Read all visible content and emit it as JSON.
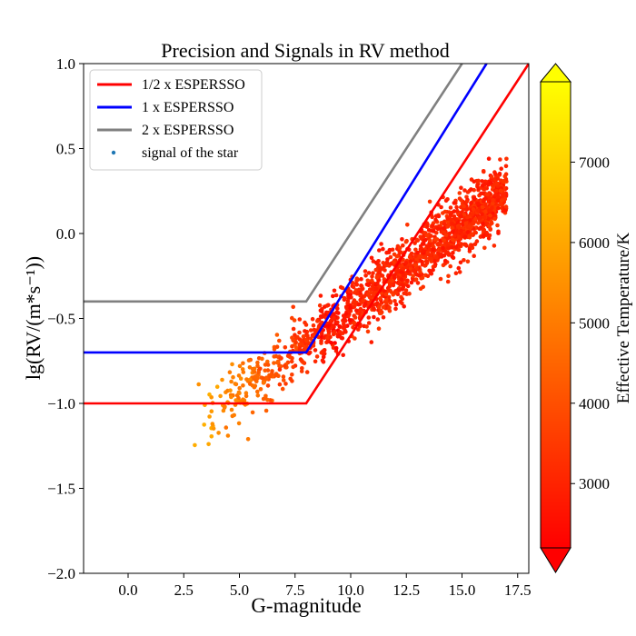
{
  "chart_data": {
    "type": "scatter",
    "title": "Precision and Signals in RV method",
    "xlabel": "G-magnitude",
    "ylabel": "lg(RV/(m*s⁻¹))",
    "xlim": [
      -2,
      18
    ],
    "ylim": [
      -2,
      1
    ],
    "x_ticks": [
      0.0,
      2.5,
      5.0,
      7.5,
      10.0,
      12.5,
      15.0,
      17.5
    ],
    "x_tick_labels": [
      "0.0",
      "2.5",
      "5.0",
      "7.5",
      "10.0",
      "12.5",
      "15.0",
      "17.5"
    ],
    "y_ticks": [
      -2.0,
      -1.5,
      -1.0,
      -0.5,
      0.0,
      0.5,
      1.0
    ],
    "y_tick_labels": [
      "−2.0",
      "−1.5",
      "−1.0",
      "−0.5",
      "0.0",
      "0.5",
      "1.0"
    ],
    "legend_position": "top-left",
    "series": [
      {
        "name": "1/2 x ESPERSSO",
        "kind": "line",
        "color": "#ff0000",
        "x": [
          -2,
          8,
          18
        ],
        "y": [
          -1.0,
          -1.0,
          1.0
        ]
      },
      {
        "name": "1 x ESPERSSO",
        "kind": "line",
        "color": "#0000ff",
        "x": [
          -2,
          8,
          16.1
        ],
        "y": [
          -0.7,
          -0.7,
          1.0
        ]
      },
      {
        "name": "2 x ESPERSSO",
        "kind": "line",
        "color": "#808080",
        "x": [
          -2,
          8,
          15
        ],
        "y": [
          -0.4,
          -0.4,
          1.0
        ]
      },
      {
        "name": "signal of the star",
        "kind": "scatter",
        "color": "#1f77b4",
        "point_model": {
          "count": 1700,
          "x_range": [
            2.8,
            17.0
          ],
          "slope": 0.1,
          "intercept": -1.45,
          "spread": 0.09
        }
      }
    ],
    "colorbar": {
      "label": "Effective Temperature/K",
      "range": [
        2200,
        8000
      ],
      "ticks": [
        3000,
        4000,
        5000,
        6000,
        7000
      ],
      "tick_labels": [
        "3000",
        "4000",
        "5000",
        "6000",
        "7000"
      ],
      "color_low": "#ff0000",
      "color_high": "#ffff00",
      "extend": "both"
    }
  }
}
